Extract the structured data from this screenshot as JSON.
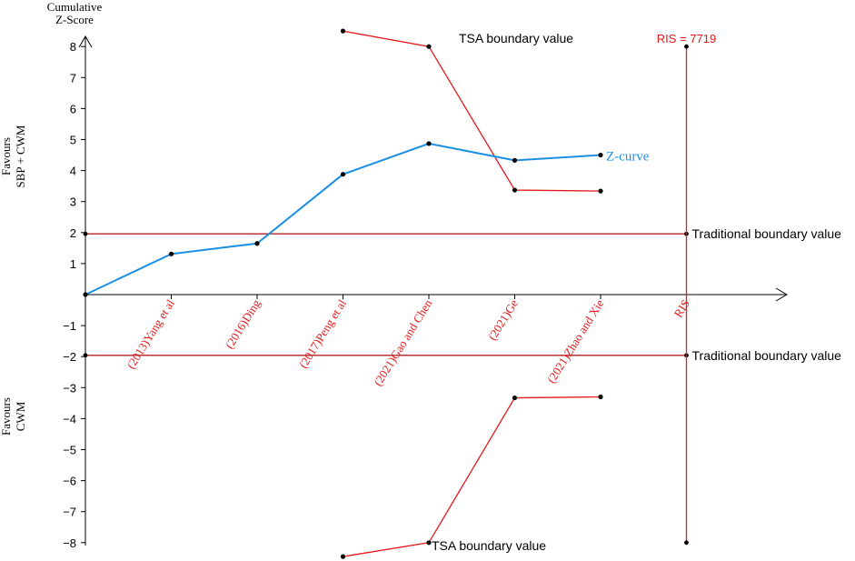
{
  "chart_data": {
    "type": "line",
    "ylabel": "Cumulative\nZ-Score",
    "ylim": [
      -8.4,
      8.8
    ],
    "yticks": [
      -8,
      -7,
      -6,
      -5,
      -4,
      -3,
      -2,
      -1,
      1,
      2,
      3,
      4,
      5,
      6,
      7,
      8
    ],
    "categories": [
      "(2013)Yang et al",
      "(2016)Ding",
      "(2017)Peng et al",
      "(2021)Gao and Chen",
      "(2021)Ge",
      "(2021)Zhao and Xie",
      "RIS"
    ],
    "favours_top": "Favours\nSBP + CWM",
    "favours_bottom": "Favours\nCWM",
    "z_curve": {
      "name": "Z-curve",
      "color": "#1a8fe3",
      "points": [
        [
          0,
          0
        ],
        [
          1,
          1.31
        ],
        [
          2,
          1.65
        ],
        [
          3,
          3.88
        ],
        [
          4,
          4.87
        ],
        [
          5,
          4.33
        ],
        [
          6,
          4.5
        ]
      ]
    },
    "tsa_upper": {
      "label": "TSA boundary value",
      "color": "#e41a1c",
      "points": [
        [
          3,
          8.5
        ],
        [
          4,
          8.0
        ],
        [
          5,
          3.37
        ],
        [
          6,
          3.34
        ]
      ]
    },
    "tsa_lower": {
      "label": "TSA boundary value",
      "color": "#e41a1c",
      "points": [
        [
          3,
          -8.45
        ],
        [
          4,
          -8.0
        ],
        [
          5,
          -3.33
        ],
        [
          6,
          -3.3
        ]
      ]
    },
    "traditional_upper": {
      "label": "Traditional boundary value",
      "value": 1.96,
      "color": "#b22222"
    },
    "traditional_lower": {
      "label": "Traditional boundary value",
      "value": -1.96,
      "color": "#b22222"
    },
    "ris": {
      "label": "RIS = 7719",
      "x": 7,
      "ymin": -8,
      "ymax": 8,
      "color": "#e41a1c"
    },
    "category_label_color": "#e41a1c"
  }
}
